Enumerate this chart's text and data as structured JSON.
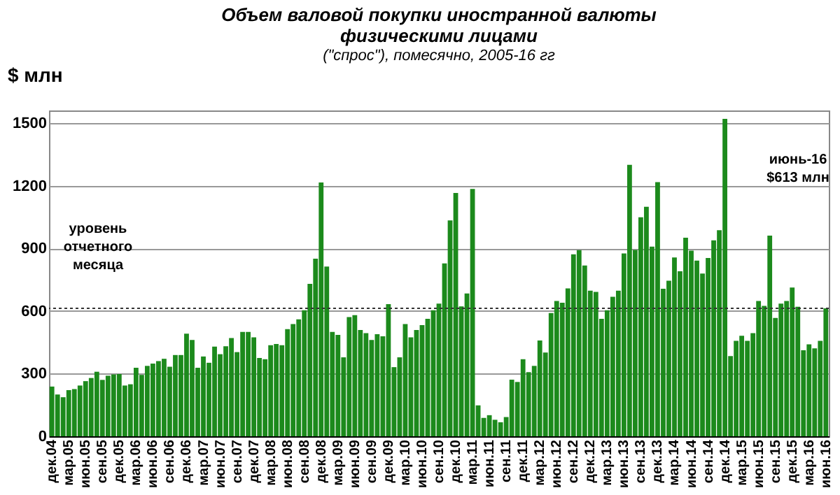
{
  "chart_data": {
    "type": "bar",
    "title": [
      "Объем валовой покупки иностранной валюты",
      "физическими лицами"
    ],
    "subtitle": "(\"спрос\"), помесячно, 2005-16 гг",
    "ylabel": "$ млн",
    "color": "#1c8a1c",
    "categories": [
      "дек.04",
      null,
      null,
      "мар.05",
      null,
      null,
      "июн.05",
      null,
      null,
      "сен.05",
      null,
      null,
      "дек.05",
      null,
      null,
      "мар.06",
      null,
      null,
      "июн.06",
      null,
      null,
      "сен.06",
      null,
      null,
      "дек.06",
      null,
      null,
      "мар.07",
      null,
      null,
      "июн.07",
      null,
      null,
      "сен.07",
      null,
      null,
      "дек.07",
      null,
      null,
      "мар.08",
      null,
      null,
      "июн.08",
      null,
      null,
      "сен.08",
      null,
      null,
      "дек.08",
      null,
      null,
      "мар.09",
      null,
      null,
      "июн.09",
      null,
      null,
      "сен.09",
      null,
      null,
      "дек.09",
      null,
      null,
      "мар.10",
      null,
      null,
      "июн.10",
      null,
      null,
      "сен.10",
      null,
      null,
      "дек.10",
      null,
      null,
      "мар.11",
      null,
      null,
      "июн.11",
      null,
      null,
      "сен.11",
      null,
      null,
      "дек.11",
      null,
      null,
      "мар.12",
      null,
      null,
      "июн.12",
      null,
      null,
      "сен.12",
      null,
      null,
      "дек.12",
      null,
      null,
      "мар.13",
      null,
      null,
      "июн.13",
      null,
      null,
      "сен.13",
      null,
      null,
      "дек.13",
      null,
      null,
      "мар.14",
      null,
      null,
      "июн.14",
      null,
      null,
      "сен.14",
      null,
      null,
      "дек.14",
      null,
      null,
      "мар.15",
      null,
      null,
      "июн.15",
      null,
      null,
      "сен.15",
      null,
      null,
      "дек.15",
      null,
      null,
      "мар.16",
      null,
      null,
      "июн.16"
    ],
    "values": [
      238,
      200,
      187,
      221,
      226,
      243,
      264,
      279,
      309,
      270,
      290,
      296,
      298,
      243,
      249,
      328,
      294,
      337,
      348,
      360,
      371,
      333,
      389,
      389,
      491,
      461,
      328,
      382,
      352,
      429,
      393,
      431,
      470,
      403,
      500,
      500,
      474,
      375,
      369,
      436,
      442,
      436,
      513,
      537,
      560,
      603,
      730,
      850,
      1215,
      813,
      500,
      485,
      378,
      571,
      580,
      509,
      494,
      461,
      489,
      479,
      633,
      331,
      378,
      537,
      474,
      509,
      532,
      562,
      603,
      635,
      828,
      1034,
      1165,
      622,
      684,
      1184,
      148,
      88,
      101,
      79,
      67,
      92,
      271,
      260,
      369,
      307,
      337,
      459,
      401,
      590,
      648,
      639,
      708,
      871,
      891,
      818,
      697,
      691,
      562,
      603,
      668,
      697,
      875,
      1300,
      892,
      1049,
      1099,
      908,
      1217,
      706,
      745,
      856,
      790,
      951,
      889,
      841,
      779,
      854,
      938,
      987,
      1520,
      384,
      457,
      481,
      457,
      494,
      648,
      624,
      961,
      567,
      635,
      648,
      712,
      620,
      412,
      440,
      421,
      457,
      613
    ],
    "ylim": [
      0,
      1560
    ],
    "yticks": [
      0,
      300,
      600,
      900,
      1200,
      1500
    ],
    "grid": "y",
    "ref_lines": [
      {
        "axis": "y",
        "value": 613,
        "label": "уровень отчетного месяца",
        "line_style": "dotted",
        "color": "#333333"
      }
    ],
    "annotations": [
      "июнь-16 $613 млн"
    ]
  }
}
